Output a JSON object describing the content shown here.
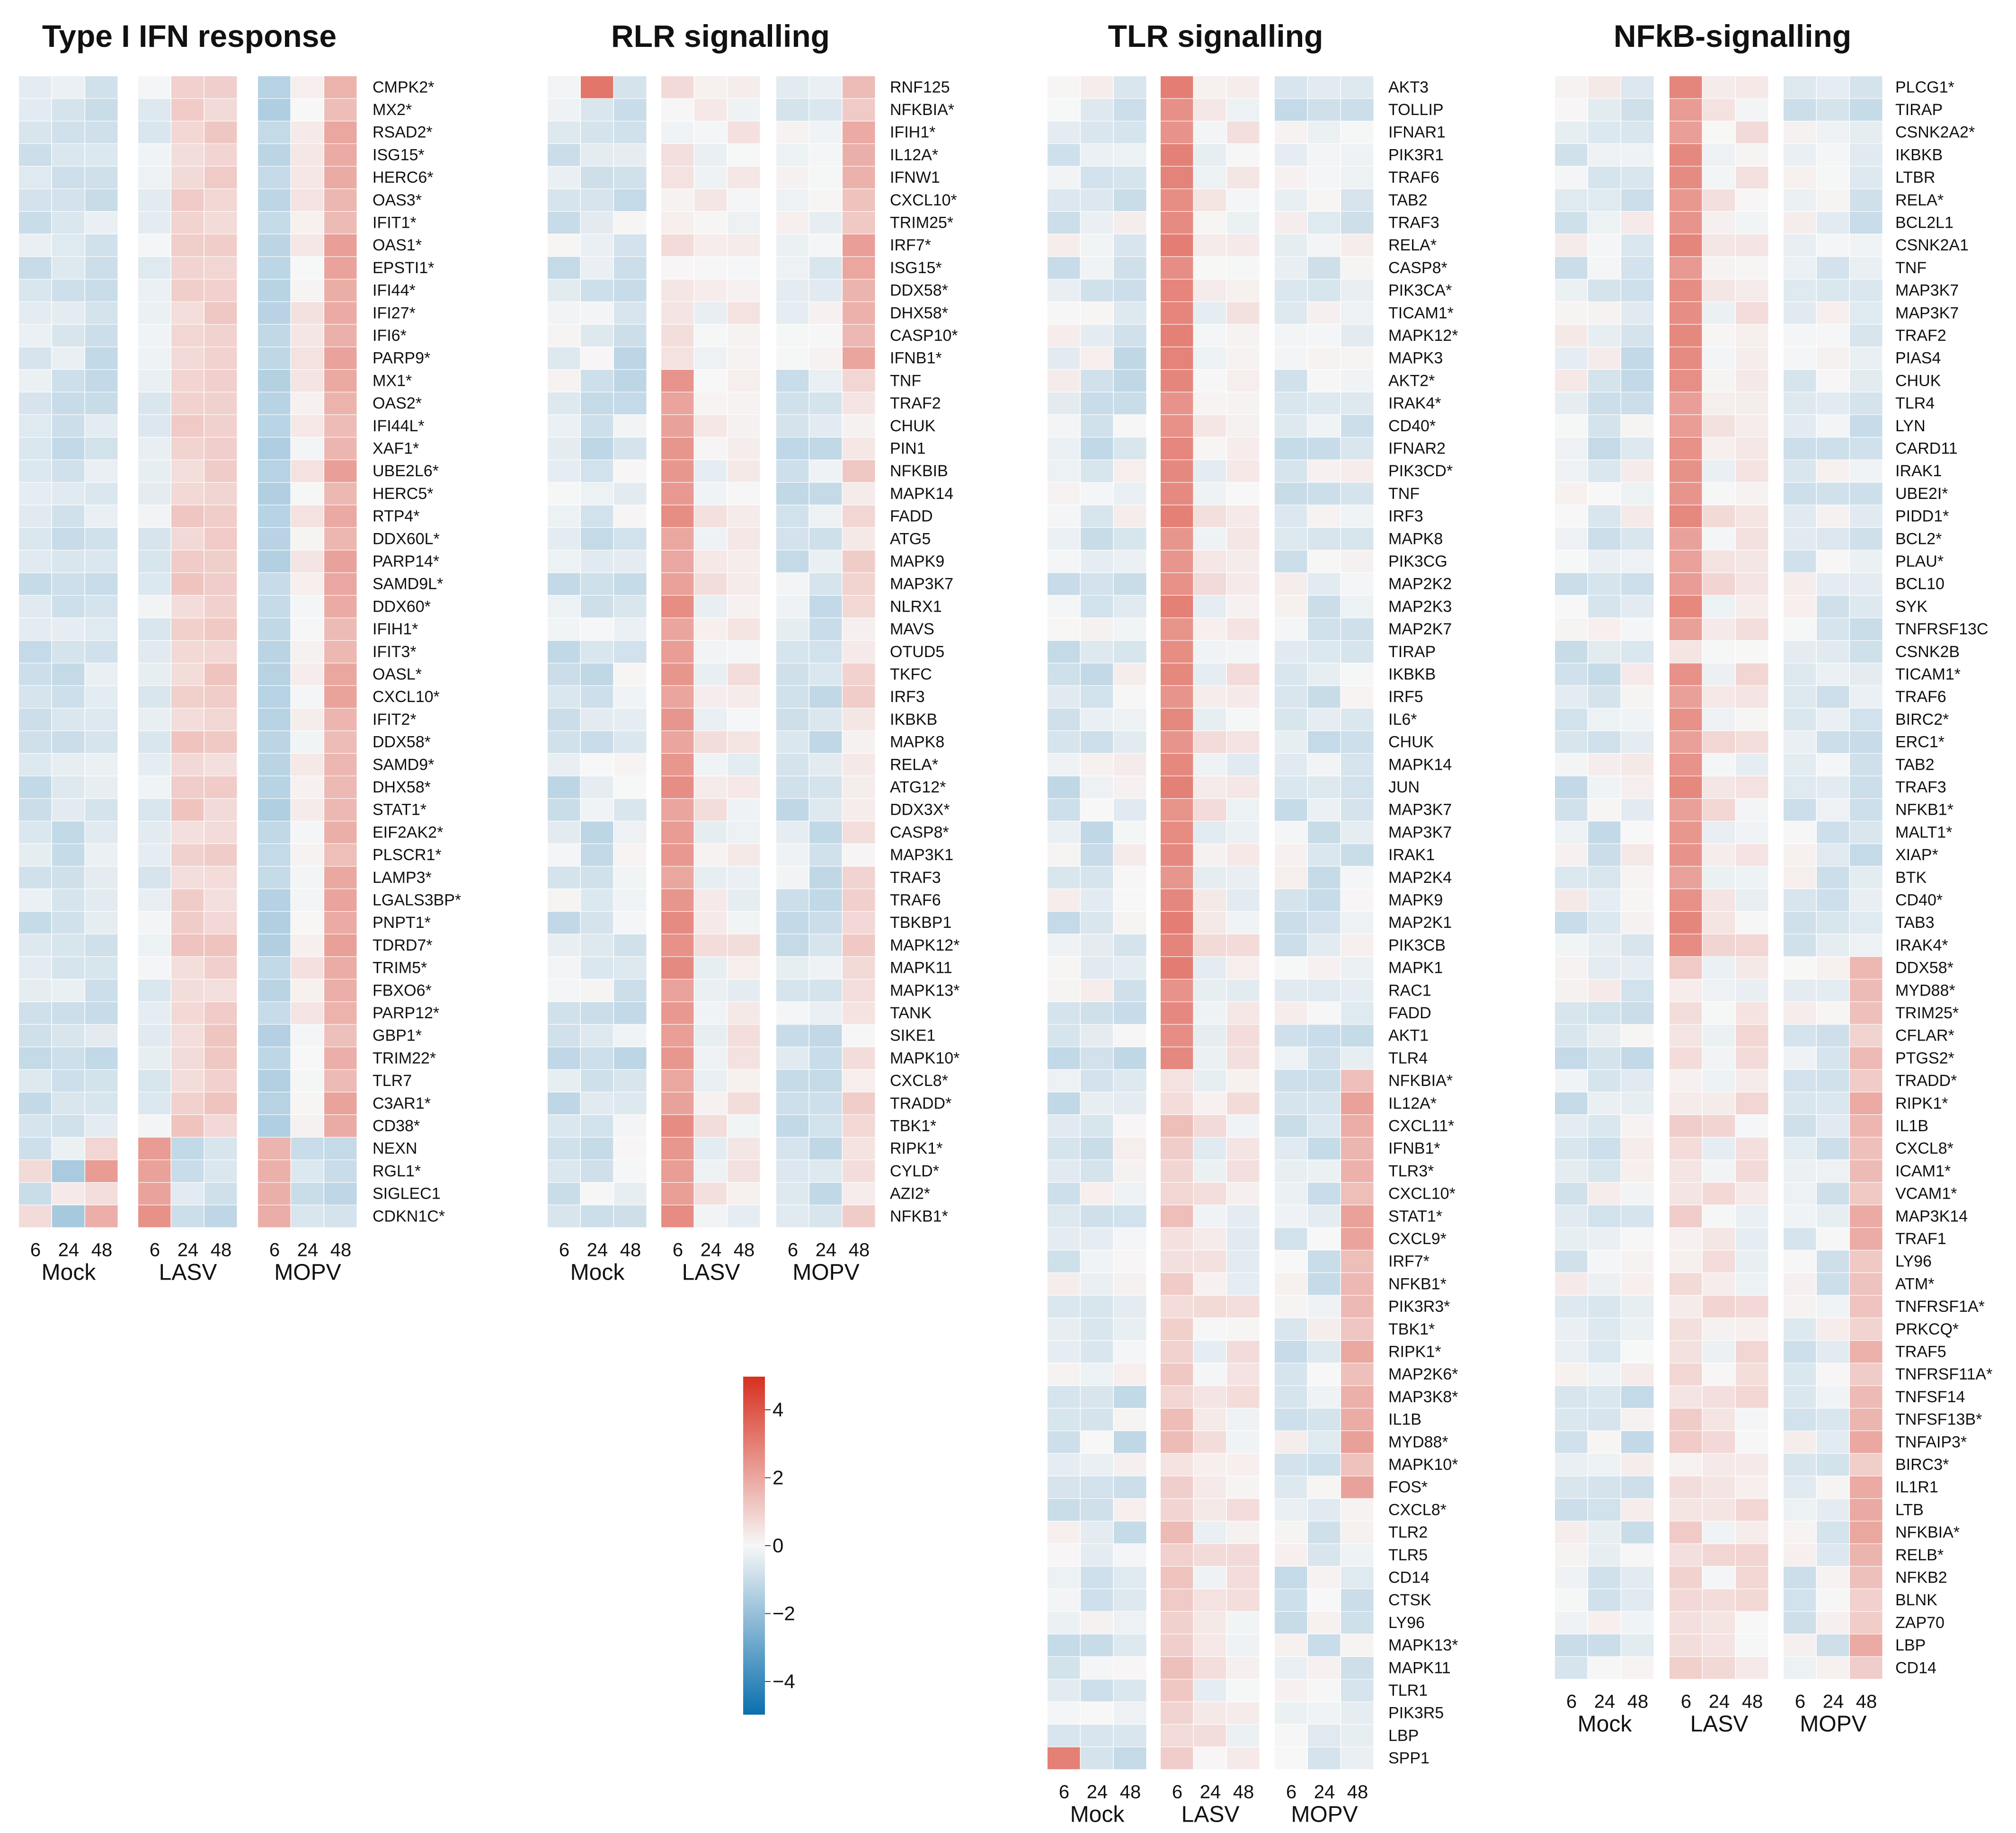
{
  "chart_data": [
    {
      "type": "heatmap",
      "title": "Type I IFN response",
      "groups": [
        "Mock",
        "LASV",
        "MOPV"
      ],
      "timepoints": [
        "6",
        "24",
        "48"
      ],
      "genes": [
        "CMPK2*",
        "MX2*",
        "RSAD2*",
        "ISG15*",
        "HERC6*",
        "OAS3*",
        "IFIT1*",
        "OAS1*",
        "EPSTI1*",
        "IFI44*",
        "IFI27*",
        "IFI6*",
        "PARP9*",
        "MX1*",
        "OAS2*",
        "IFI44L*",
        "XAF1*",
        "UBE2L6*",
        "HERC5*",
        "RTP4*",
        "DDX60L*",
        "PARP14*",
        "SAMD9L*",
        "DDX60*",
        "IFIH1*",
        "IFIT3*",
        "OASL*",
        "CXCL10*",
        "IFIT2*",
        "DDX58*",
        "SAMD9*",
        "DHX58*",
        "STAT1*",
        "EIF2AK2*",
        "PLSCR1*",
        "LAMP3*",
        "LGALS3BP*",
        "PNPT1*",
        "TDRD7*",
        "TRIM5*",
        "FBXO6*",
        "PARP12*",
        "GBP1*",
        "TRIM22*",
        "TLR7",
        "C3AR1*",
        "CD38*",
        "NEXN",
        "RGL1*",
        "SIGLEC1",
        "CDKN1C*"
      ],
      "pattern": "ifn",
      "value_range": [
        -4,
        4
      ]
    },
    {
      "type": "heatmap",
      "title": "RLR signalling",
      "groups": [
        "Mock",
        "LASV",
        "MOPV"
      ],
      "timepoints": [
        "6",
        "24",
        "48"
      ],
      "genes": [
        "RNF125",
        "NFKBIA*",
        "IFIH1*",
        "IL12A*",
        "IFNW1",
        "CXCL10*",
        "TRIM25*",
        "IRF7*",
        "ISG15*",
        "DDX58*",
        "DHX58*",
        "CASP10*",
        "IFNB1*",
        "TNF",
        "TRAF2",
        "CHUK",
        "PIN1",
        "NFKBIB",
        "MAPK14",
        "FADD",
        "ATG5",
        "MAPK9",
        "MAP3K7",
        "NLRX1",
        "MAVS",
        "OTUD5",
        "TKFC",
        "IRF3",
        "IKBKB",
        "MAPK8",
        "RELA*",
        "ATG12*",
        "DDX3X*",
        "CASP8*",
        "MAP3K1",
        "TRAF3",
        "TRAF6",
        "TBKBP1",
        "MAPK12*",
        "MAPK11",
        "MAPK13*",
        "TANK",
        "SIKE1",
        "MAPK10*",
        "CXCL8*",
        "TRADD*",
        "TBK1*",
        "RIPK1*",
        "CYLD*",
        "AZI2*",
        "NFKB1*"
      ],
      "pattern": "rlr",
      "value_range": [
        -4,
        4
      ]
    },
    {
      "type": "heatmap",
      "title": "TLR signalling",
      "groups": [
        "Mock",
        "LASV",
        "MOPV"
      ],
      "timepoints": [
        "6",
        "24",
        "48"
      ],
      "genes": [
        "AKT3",
        "TOLLIP",
        "IFNAR1",
        "PIK3R1",
        "TRAF6",
        "TAB2",
        "TRAF3",
        "RELA*",
        "CASP8*",
        "PIK3CA*",
        "TICAM1*",
        "MAPK12*",
        "MAPK3",
        "AKT2*",
        "IRAK4*",
        "CD40*",
        "IFNAR2",
        "PIK3CD*",
        "TNF",
        "IRF3",
        "MAPK8",
        "PIK3CG",
        "MAP2K2",
        "MAP2K3",
        "MAP2K7",
        "TIRAP",
        "IKBKB",
        "IRF5",
        "IL6*",
        "CHUK",
        "MAPK14",
        "JUN",
        "MAP3K7",
        "MAP3K7",
        "IRAK1",
        "MAP2K4",
        "MAPK9",
        "MAP2K1",
        "PIK3CB",
        "MAPK1",
        "RAC1",
        "FADD",
        "AKT1",
        "TLR4",
        "NFKBIA*",
        "IL12A*",
        "CXCL11*",
        "IFNB1*",
        "TLR3*",
        "CXCL10*",
        "STAT1*",
        "CXCL9*",
        "IRF7*",
        "NFKB1*",
        "PIK3R3*",
        "TBK1*",
        "RIPK1*",
        "MAP2K6*",
        "MAP3K8*",
        "IL1B",
        "MYD88*",
        "MAPK10*",
        "FOS*",
        "CXCL8*",
        "TLR2",
        "TLR5",
        "CD14",
        "CTSK",
        "LY96",
        "MAPK13*",
        "MAPK11",
        "TLR1",
        "PIK3R5",
        "LBP",
        "SPP1"
      ],
      "pattern": "tlr",
      "value_range": [
        -4,
        4
      ]
    },
    {
      "type": "heatmap",
      "title": "NFkB-signalling",
      "groups": [
        "Mock",
        "LASV",
        "MOPV"
      ],
      "timepoints": [
        "6",
        "24",
        "48"
      ],
      "genes": [
        "PLCG1*",
        "TIRAP",
        "CSNK2A2*",
        "IKBKB",
        "LTBR",
        "RELA*",
        "BCL2L1",
        "CSNK2A1",
        "TNF",
        "MAP3K7",
        "MAP3K7",
        "TRAF2",
        "PIAS4",
        "CHUK",
        "TLR4",
        "LYN",
        "CARD11",
        "IRAK1",
        "UBE2I*",
        "PIDD1*",
        "BCL2*",
        "PLAU*",
        "BCL10",
        "SYK",
        "TNFRSF13C",
        "CSNK2B",
        "TICAM1*",
        "TRAF6",
        "BIRC2*",
        "ERC1*",
        "TAB2",
        "TRAF3",
        "NFKB1*",
        "MALT1*",
        "XIAP*",
        "BTK",
        "CD40*",
        "TAB3",
        "IRAK4*",
        "DDX58*",
        "MYD88*",
        "TRIM25*",
        "CFLAR*",
        "PTGS2*",
        "TRADD*",
        "RIPK1*",
        "IL1B",
        "CXCL8*",
        "ICAM1*",
        "VCAM1*",
        "MAP3K14",
        "TRAF1",
        "LY96",
        "ATM*",
        "TNFRSF1A*",
        "PRKCQ*",
        "TRAF5",
        "TNFRSF11A*",
        "TNFSF14",
        "TNFSF13B*",
        "TNFAIP3*",
        "BIRC3*",
        "IL1R1",
        "LTB",
        "NFKBIA*",
        "RELB*",
        "NFKB2",
        "BLNK",
        "ZAP70",
        "LBP",
        "CD14"
      ],
      "pattern": "nfkb",
      "value_range": [
        -4,
        4
      ]
    }
  ],
  "colorbar": {
    "ticks": [
      "4",
      "2",
      "0",
      "−2",
      "−4"
    ],
    "min": -4,
    "max": 4,
    "colors": {
      "high": "#d7301f",
      "mid": "#f7f7f7",
      "low": "#0a6fae"
    }
  }
}
